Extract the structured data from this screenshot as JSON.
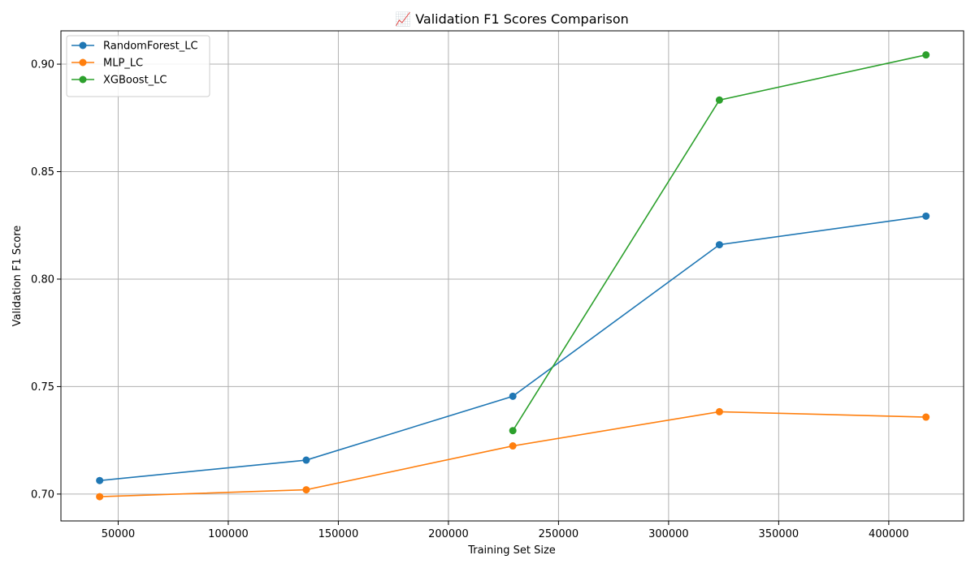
{
  "chart_data": {
    "type": "line",
    "title": "📈 Validation F1 Scores Comparison",
    "xlabel": "Training Set Size",
    "ylabel": "Validation F1 Score",
    "xlim": [
      24000,
      434000
    ],
    "ylim": [
      0.6875,
      0.9155
    ],
    "x_ticks": [
      50000,
      100000,
      150000,
      200000,
      250000,
      300000,
      350000,
      400000
    ],
    "y_ticks": [
      0.7,
      0.75,
      0.8,
      0.85,
      0.9
    ],
    "grid": true,
    "legend_position": "top-left",
    "series": [
      {
        "name": "RandomForest_LC",
        "color": "#1f77b4",
        "x": [
          41590,
          135419,
          229248,
          323077,
          416906
        ],
        "y": [
          0.7063,
          0.7158,
          0.7455,
          0.816,
          0.8293
        ]
      },
      {
        "name": "MLP_LC",
        "color": "#ff7f0e",
        "x": [
          41590,
          135419,
          229248,
          323077,
          416906
        ],
        "y": [
          0.6988,
          0.702,
          0.7224,
          0.7383,
          0.7358
        ]
      },
      {
        "name": "XGBoost_LC",
        "color": "#2ca02c",
        "x": [
          229248,
          323077,
          416906
        ],
        "y": [
          0.7295,
          0.8833,
          0.9043
        ]
      }
    ]
  }
}
